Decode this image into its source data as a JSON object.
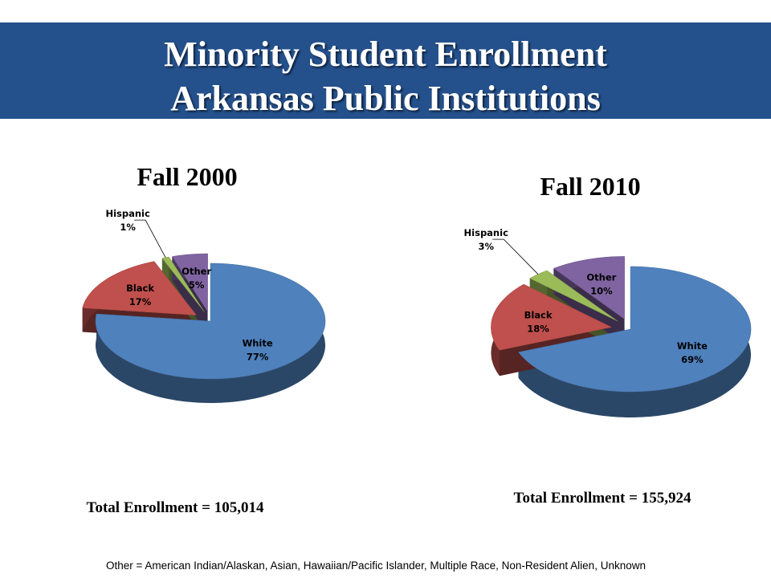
{
  "title": [
    "Minority Student Enrollment",
    "Arkansas Public Institutions"
  ],
  "chart_data": [
    {
      "type": "pie",
      "title": "Fall 2000",
      "note": "Total Enrollment = 105,014",
      "categories": [
        "White",
        "Black",
        "Hispanic",
        "Other"
      ],
      "values": [
        77,
        17,
        1,
        5
      ],
      "value_labels": [
        "77%",
        "17%",
        "1%",
        "5%"
      ],
      "colors": [
        "#4f81bd",
        "#c0504d",
        "#9bbb59",
        "#8064a2"
      ]
    },
    {
      "type": "pie",
      "title": "Fall 2010",
      "note": "Total Enrollment = 155,924",
      "categories": [
        "White",
        "Black",
        "Hispanic",
        "Other"
      ],
      "values": [
        69,
        18,
        3,
        10
      ],
      "value_labels": [
        "69%",
        "18%",
        "3%",
        "10%"
      ],
      "colors": [
        "#4f81bd",
        "#c0504d",
        "#9bbb59",
        "#8064a2"
      ]
    }
  ],
  "footnote": "Other = American Indian/Alaskan, Asian, Hawaiian/Pacific Islander, Multiple Race, Non-Resident Alien, Unknown"
}
